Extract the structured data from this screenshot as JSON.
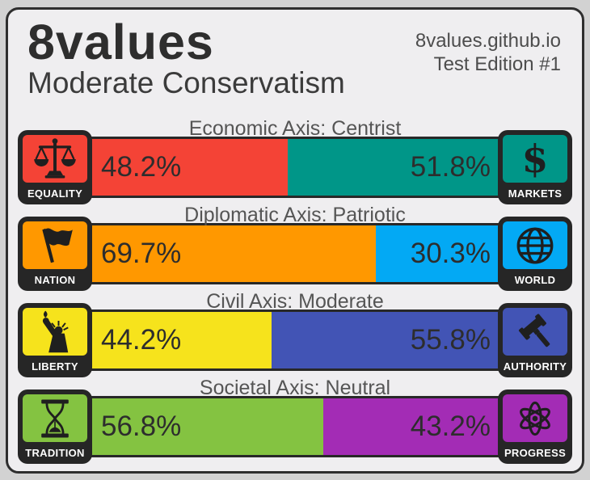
{
  "header": {
    "brand": "8values",
    "site": "8values.github.io",
    "edition": "Test Edition #1",
    "ideology": "Moderate Conservatism"
  },
  "axes": [
    {
      "title": "Economic Axis: Centrist",
      "left": {
        "label": "EQUALITY",
        "pct": "48.2%",
        "value": 48.2,
        "color": "#f44336",
        "icon": "scales-icon"
      },
      "right": {
        "label": "MARKETS",
        "pct": "51.8%",
        "value": 51.8,
        "color": "#009688",
        "icon": "dollar-icon"
      }
    },
    {
      "title": "Diplomatic Axis: Patriotic",
      "left": {
        "label": "NATION",
        "pct": "69.7%",
        "value": 69.7,
        "color": "#ff9800",
        "icon": "flag-icon"
      },
      "right": {
        "label": "WORLD",
        "pct": "30.3%",
        "value": 30.3,
        "color": "#03a9f4",
        "icon": "globe-icon"
      }
    },
    {
      "title": "Civil Axis: Moderate",
      "left": {
        "label": "LIBERTY",
        "pct": "44.2%",
        "value": 44.2,
        "color": "#f6e31c",
        "icon": "liberty-statue-icon"
      },
      "right": {
        "label": "AUTHORITY",
        "pct": "55.8%",
        "value": 55.8,
        "color": "#4254b5",
        "icon": "gavel-icon"
      }
    },
    {
      "title": "Societal Axis: Neutral",
      "left": {
        "label": "TRADITION",
        "pct": "56.8%",
        "value": 56.8,
        "color": "#84c341",
        "icon": "hourglass-icon"
      },
      "right": {
        "label": "PROGRESS",
        "pct": "43.2%",
        "value": 43.2,
        "color": "#a32cb5",
        "icon": "atom-icon"
      }
    }
  ],
  "chart_data": {
    "type": "bar",
    "subtype": "horizontal-stacked-percent",
    "title": "8values — Moderate Conservatism",
    "source_text": "8values.github.io — Test Edition #1",
    "categories": [
      "Economic Axis: Centrist",
      "Diplomatic Axis: Patriotic",
      "Civil Axis: Moderate",
      "Societal Axis: Neutral"
    ],
    "series": [
      {
        "name": "left-pole",
        "labels": [
          "Equality",
          "Nation",
          "Liberty",
          "Tradition"
        ],
        "values": [
          48.2,
          69.7,
          44.2,
          56.8
        ],
        "colors": [
          "#f44336",
          "#ff9800",
          "#f6e31c",
          "#84c341"
        ]
      },
      {
        "name": "right-pole",
        "labels": [
          "Markets",
          "World",
          "Authority",
          "Progress"
        ],
        "values": [
          51.8,
          30.3,
          55.8,
          43.2
        ],
        "colors": [
          "#009688",
          "#03a9f4",
          "#4254b5",
          "#a32cb5"
        ]
      }
    ],
    "xlim": [
      0,
      100
    ],
    "value_unit": "%",
    "legend_position": "icons-at-bar-ends",
    "grid": false
  }
}
